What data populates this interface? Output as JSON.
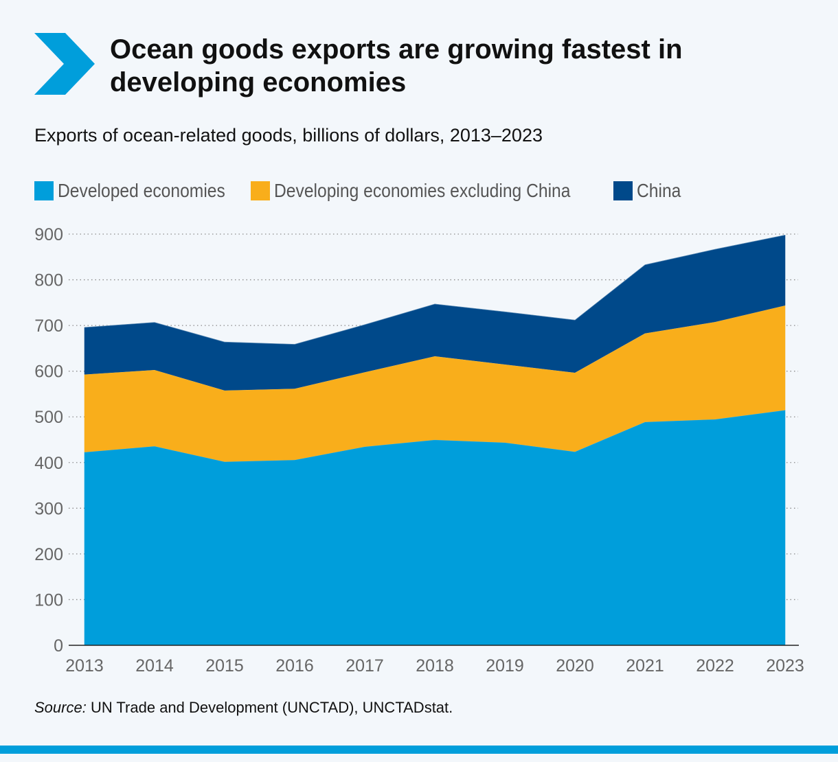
{
  "header": {
    "title": "Ocean goods exports are growing fastest in developing economies",
    "subtitle": "Exports of ocean-related goods, billions of dollars, 2013–2023",
    "icon": "chevron-right-icon"
  },
  "colors": {
    "background": "#f3f7fb",
    "developed": "#009edb",
    "developing": "#f9ae1b",
    "china": "#00498a",
    "accent": "#009edb"
  },
  "legend": {
    "developed": "Developed economies",
    "developing": "Developing economies excluding China",
    "china": "China"
  },
  "source": {
    "prefix": "Source:",
    "text": " UN Trade and Development (UNCTAD), UNCTADstat."
  },
  "chart_data": {
    "type": "area",
    "stacked": true,
    "x": [
      "2013",
      "2014",
      "2015",
      "2016",
      "2017",
      "2018",
      "2019",
      "2020",
      "2021",
      "2022",
      "2023"
    ],
    "series": [
      {
        "name": "Developed economies",
        "color": "#009edb",
        "values": [
          423,
          436,
          402,
          406,
          435,
          450,
          444,
          424,
          489,
          495,
          515
        ]
      },
      {
        "name": "Developing economies excluding China",
        "color": "#f9ae1b",
        "values": [
          170,
          167,
          156,
          156,
          163,
          183,
          171,
          173,
          194,
          213,
          229
        ]
      },
      {
        "name": "China",
        "color": "#00498a",
        "values": [
          103,
          104,
          106,
          97,
          104,
          114,
          115,
          115,
          150,
          159,
          154
        ]
      }
    ],
    "yticks": [
      0,
      100,
      200,
      300,
      400,
      500,
      600,
      700,
      800,
      900
    ],
    "ylim": [
      0,
      900
    ],
    "grid": "horizontal dotted",
    "legend_position": "top-left"
  }
}
